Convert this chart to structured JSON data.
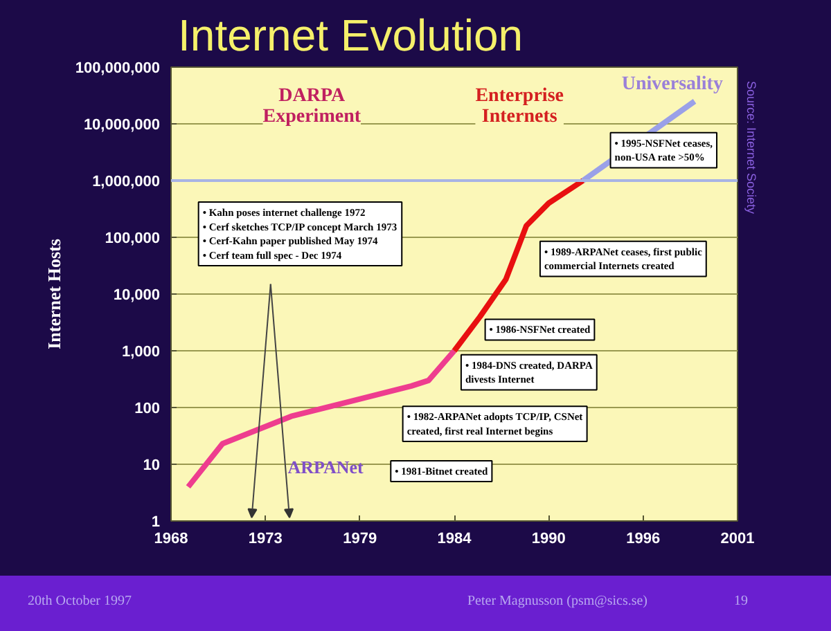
{
  "chart_data": {
    "type": "line",
    "title": "Internet Evolution",
    "ylabel": "Internet Hosts",
    "log": "y",
    "grid": "y",
    "marker": "none",
    "line_style": "solid",
    "xlim": [
      1968,
      2001
    ],
    "xticks": [
      1968,
      {
        "value": 1973.5,
        "label": "1973"
      },
      1979,
      {
        "value": 1984.5,
        "label": "1984"
      },
      1990,
      {
        "value": 1995.5,
        "label": "1996"
      },
      2001
    ],
    "ylim": [
      1,
      100000000
    ],
    "yticks": [
      1,
      10,
      100,
      {
        "value": 1000,
        "label": "1,000"
      },
      {
        "value": 10000,
        "label": "10,000"
      },
      {
        "value": 100000,
        "label": "100,000"
      },
      {
        "value": 1000000,
        "label": "1,000,000"
      },
      {
        "value": 10000000,
        "label": "10,000,000"
      },
      {
        "value": 100000000,
        "label": "100,000,000"
      }
    ],
    "series": [
      {
        "color": "#ee3d8f",
        "x": [
          1969,
          1971,
          1975,
          1982,
          1983,
          1984.5
        ],
        "values": [
          4,
          23,
          70,
          240,
          300,
          1000
        ]
      },
      {
        "color": "#e81010",
        "x": [
          1984.5,
          1986,
          1987.5,
          1988.7,
          1990,
          1992
        ],
        "values": [
          1000,
          4000,
          18000,
          160000,
          400000,
          1000000
        ]
      },
      {
        "color": "#9aa0e8",
        "x": [
          1992,
          1998.5
        ],
        "values": [
          1000000,
          25000000
        ]
      }
    ],
    "ref_lines": [
      {
        "axis": "y",
        "value": 1000000,
        "color": "#a8b4e4"
      }
    ],
    "annotations": [
      "DARPA\nExperiment",
      "Enterprise\nInternets",
      "Universality",
      "ARPANet",
      "• Kahn poses internet challenge 1972\n• Cerf sketches TCP/IP concept March 1973\n• Cerf-Kahn paper published May 1974\n• Cerf team full spec - Dec 1974",
      "• 1995-NSFNet ceases,\nnon-USA rate >50%",
      "• 1989-ARPANet ceases, first public\ncommercial Internets created",
      "• 1986-NSFNet created",
      "• 1984-DNS created, DARPA\ndivests Internet",
      "• 1982-ARPANet adopts TCP/IP, CSNet\ncreated, first real Internet begins",
      "• 1981-Bitnet created",
      "Source: Internet Society",
      "20th October 1997",
      "Peter Magnusson (psm@sics.se)",
      "19"
    ]
  }
}
